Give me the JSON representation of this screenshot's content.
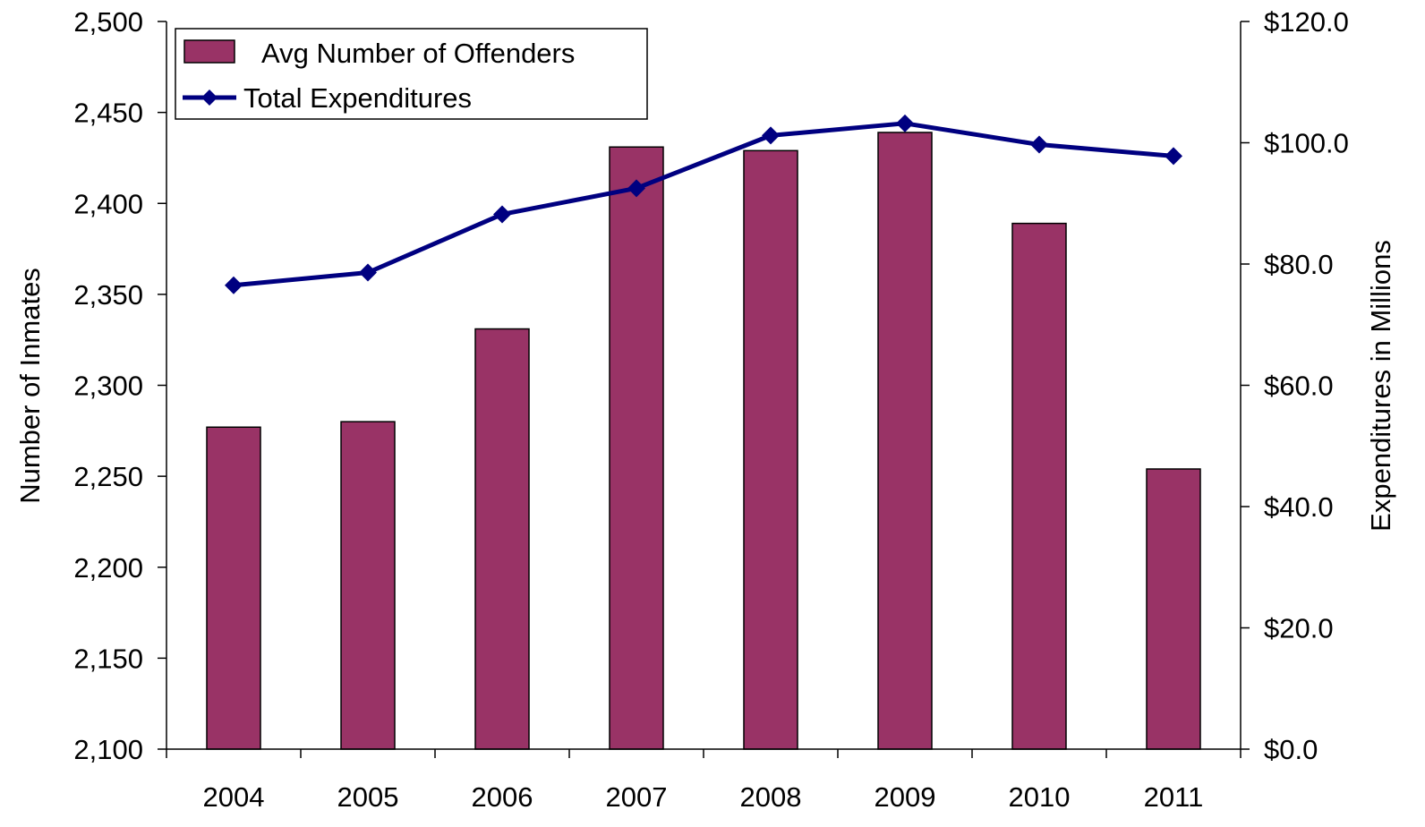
{
  "chart_data": {
    "type": "bar",
    "categories": [
      "2004",
      "2005",
      "2006",
      "2007",
      "2008",
      "2009",
      "2010",
      "2011"
    ],
    "series": [
      {
        "name": "Avg Number of Offenders",
        "kind": "bar",
        "axis": "left",
        "color": "#993366",
        "values": [
          2277,
          2280,
          2331,
          2431,
          2429,
          2439,
          2389,
          2254
        ]
      },
      {
        "name": "Total Expenditures",
        "kind": "line",
        "axis": "right",
        "color": "#000080",
        "marker": "diamond",
        "values": [
          76.5,
          78.6,
          88.2,
          92.5,
          101.2,
          103.2,
          99.7,
          97.8
        ]
      }
    ],
    "ylabel_left": "Number of Inmates",
    "ylabel_right": "Expenditures in Millions",
    "ylim_left": [
      2100,
      2500
    ],
    "ylim_right": [
      0,
      120
    ],
    "yticks_left": [
      "2,100",
      "2,150",
      "2,200",
      "2,250",
      "2,300",
      "2,350",
      "2,400",
      "2,450",
      "2,500"
    ],
    "yticks_right": [
      "$0.0",
      "$20.0",
      "$40.0",
      "$60.0",
      "$80.0",
      "$100.0",
      "$120.0"
    ],
    "grid": false,
    "legend_position": "top-left"
  }
}
